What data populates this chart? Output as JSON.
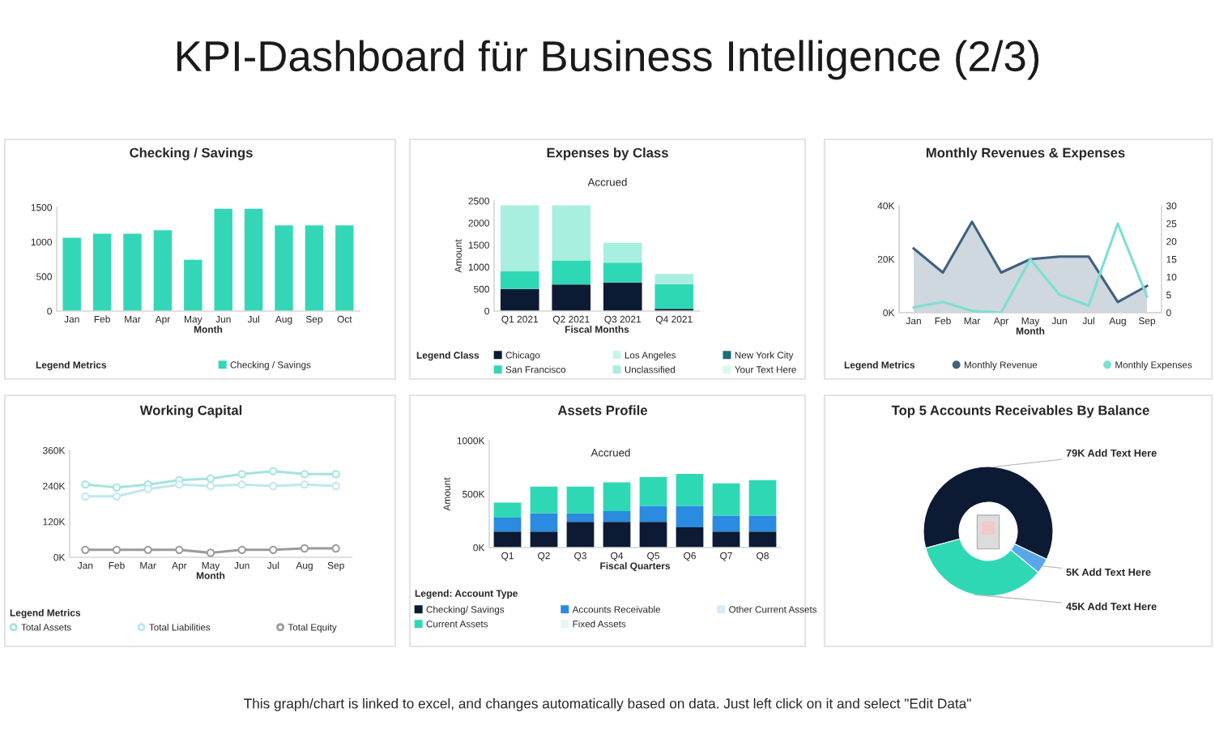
{
  "chart_data": [
    {
      "type": "other",
      "title": "KPI-Dashboard für Business Intelligence (2/3)",
      "annotations": [
        "This graph/chart is linked to excel, and changes automatically based on data. Just left click on it and select \"Edit Data\""
      ]
    },
    {
      "type": "bar",
      "title": "Checking / Savings",
      "xlabel": "Month",
      "legend_title": "Legend Metrics",
      "legend": "bottom",
      "categories": [
        "Jan",
        "Feb",
        "Mar",
        "Apr",
        "May",
        "Jun",
        "Jul",
        "Aug",
        "Sep",
        "Oct"
      ],
      "series": [
        {
          "name": "Checking / Savings",
          "color": "#33d7b7",
          "values": [
            1060,
            1120,
            1120,
            1170,
            740,
            1480,
            1480,
            1240,
            1240,
            1240
          ]
        }
      ],
      "ylim": [
        0,
        1500
      ],
      "yticks": [
        0,
        500,
        1000,
        1500
      ]
    },
    {
      "type": "bar",
      "stacked": true,
      "title": "Expenses by Class",
      "subtitle": "Accrued",
      "xlabel": "Fiscal Months",
      "ylabel": "Amount",
      "legend_title": "Legend Class",
      "legend": "bottom",
      "categories": [
        "Q1 2021",
        "Q2 2021",
        "Q3 2021",
        "Q4 2021"
      ],
      "series": [
        {
          "name": "Chicago",
          "color": "#0c1a33",
          "values": [
            500,
            600,
            650,
            50
          ]
        },
        {
          "name": "Los Angeles",
          "color": "#c9f3ea",
          "values": [
            null,
            null,
            null,
            null
          ]
        },
        {
          "name": "New York City",
          "color": "#1c6e77",
          "values": [
            null,
            null,
            null,
            null
          ]
        },
        {
          "name": "San Francisco",
          "color": "#2fd8b5",
          "values": [
            400,
            550,
            450,
            560
          ]
        },
        {
          "name": "Unclassified",
          "color": "#a9efe0",
          "values": [
            1500,
            1250,
            450,
            230
          ]
        },
        {
          "name": "Your Text Here",
          "color": "#dcf7f1",
          "values": [
            null,
            null,
            null,
            null
          ]
        }
      ],
      "ylim": [
        0,
        2500
      ],
      "yticks": [
        0,
        500,
        1000,
        1500,
        2000,
        2500
      ]
    },
    {
      "type": "line",
      "title": "Monthly Revenues & Expenses",
      "xlabel": "Month",
      "legend_title": "Legend Metrics",
      "legend": "bottom",
      "categories": [
        "Jan",
        "Feb",
        "Mar",
        "Apr",
        "May",
        "Jun",
        "Jul",
        "Aug",
        "Sep"
      ],
      "series": [
        {
          "name": "Monthly Revenue",
          "type": "area",
          "color": "#41607f",
          "values": [
            24,
            15,
            34,
            15,
            20,
            21,
            21,
            4,
            10
          ]
        },
        {
          "name": "Monthly Expenses",
          "axis": "y2",
          "color": "#7ddfd3",
          "values": [
            1.5,
            3,
            0.5,
            0,
            15,
            5,
            2,
            25,
            4.5
          ]
        }
      ],
      "ylim": [
        0,
        40
      ],
      "yticks": [
        {
          "value": 0,
          "label": "0K"
        },
        {
          "value": 20,
          "label": "20K"
        },
        {
          "value": 40,
          "label": "40K"
        }
      ],
      "y2lim": [
        0,
        30
      ],
      "y2ticks": [
        0,
        5,
        10,
        15,
        20,
        25,
        30
      ]
    },
    {
      "type": "line",
      "marker": "circle",
      "title": "Working Capital",
      "xlabel": "Month",
      "legend_title": "Legend Metrics",
      "legend": "bottom",
      "categories": [
        "Jan",
        "Feb",
        "Mar",
        "Apr",
        "May",
        "Jun",
        "Jul",
        "Aug",
        "Sep"
      ],
      "series": [
        {
          "name": "Total Assets",
          "color": "#a3e4dd",
          "values": [
            245,
            235,
            245,
            260,
            265,
            280,
            290,
            280,
            280
          ]
        },
        {
          "name": "Total Liabilities",
          "color": "#bde8ee",
          "values": [
            205,
            205,
            230,
            245,
            240,
            245,
            240,
            245,
            240
          ]
        },
        {
          "name": "Total Equity",
          "color": "#9b9b9b",
          "values": [
            25,
            25,
            25,
            25,
            15,
            25,
            25,
            30,
            30
          ]
        }
      ],
      "ylim": [
        0,
        360
      ],
      "yticks": [
        {
          "value": 0,
          "label": "0K"
        },
        {
          "value": 120,
          "label": "120K"
        },
        {
          "value": 240,
          "label": "240K"
        },
        {
          "value": 360,
          "label": "360K"
        }
      ]
    },
    {
      "type": "bar",
      "stacked": true,
      "title": "Assets Profile",
      "subtitle": "Accrued",
      "xlabel": "Fiscal Quarters",
      "ylabel": "Amount",
      "legend_title": "Legend: Account Type",
      "legend": "bottom",
      "categories": [
        "Q1",
        "Q2",
        "Q3",
        "Q4",
        "Q5",
        "Q6",
        "Q7",
        "Q8"
      ],
      "series": [
        {
          "name": "Checking/ Savings",
          "color": "#0c1a33",
          "values": [
            150,
            150,
            240,
            240,
            240,
            190,
            150,
            150
          ]
        },
        {
          "name": "Accounts Receivable",
          "color": "#2a8be0",
          "values": [
            130,
            170,
            80,
            100,
            150,
            200,
            150,
            150
          ]
        },
        {
          "name": "Other Current Assets",
          "color": "#d6ecf7",
          "values": [
            null,
            null,
            null,
            null,
            null,
            null,
            null,
            null
          ]
        },
        {
          "name": "Current Assets",
          "color": "#2fd8b5",
          "values": [
            140,
            250,
            250,
            270,
            270,
            300,
            300,
            330
          ]
        },
        {
          "name": "Fixed Assets",
          "color": "#e6f7f3",
          "values": [
            null,
            null,
            null,
            null,
            null,
            null,
            null,
            null
          ]
        }
      ],
      "ylim": [
        0,
        1000
      ],
      "yticks": [
        {
          "value": 0,
          "label": "0K"
        },
        {
          "value": 500,
          "label": "500K"
        },
        {
          "value": 1000,
          "label": "1000K"
        }
      ]
    },
    {
      "type": "donut",
      "title": "Top 5 Accounts Receivables By Balance",
      "categories": [
        "Add Text Here",
        "Add Text Here",
        "Add Text Here"
      ],
      "values": [
        79,
        5,
        45
      ],
      "colors": [
        "#0c1a33",
        "#5aa7e8",
        "#2fd8b5"
      ],
      "value_labels": [
        "79K",
        "5K",
        "45K"
      ]
    }
  ]
}
